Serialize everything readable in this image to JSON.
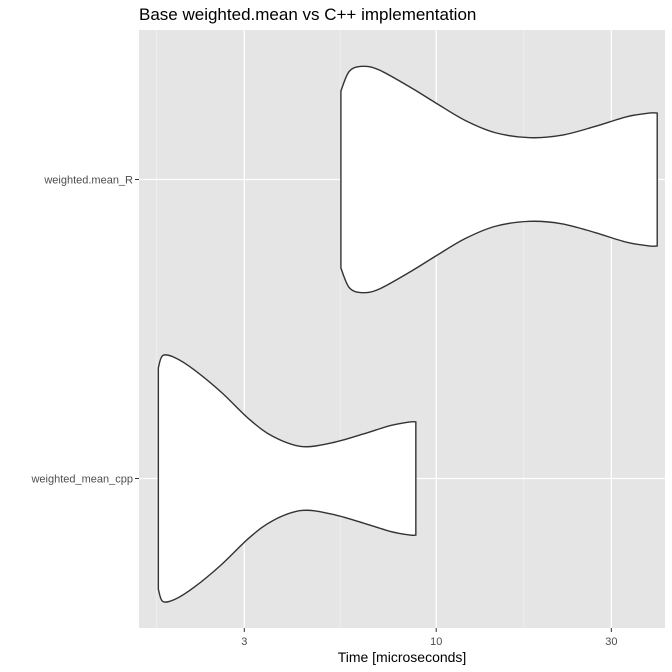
{
  "chart_data": {
    "type": "violin",
    "title": "Base weighted.mean vs C++ implementation",
    "xlabel": "Time [microseconds]",
    "ylabel": "",
    "x_scale": "log10",
    "xlim": [
      1.55,
      42
    ],
    "x_ticks": [
      3,
      10,
      30
    ],
    "x_tick_labels": [
      "3",
      "10",
      "30"
    ],
    "x_minor_ticks": [
      1.732,
      5.477,
      17.32
    ],
    "categories": [
      "weighted.mean_R",
      "weighted_mean_cpp"
    ],
    "grid": true,
    "background": "#e5e5e5",
    "violins": [
      {
        "name": "weighted.mean_R",
        "min": 5.5,
        "max": 40,
        "profile": [
          [
            5.5,
            0.72
          ],
          [
            5.8,
            0.88
          ],
          [
            6.3,
            0.92
          ],
          [
            7.0,
            0.89
          ],
          [
            8.5,
            0.75
          ],
          [
            10.0,
            0.62
          ],
          [
            12.0,
            0.48
          ],
          [
            14.5,
            0.38
          ],
          [
            18.0,
            0.34
          ],
          [
            22.0,
            0.36
          ],
          [
            27.0,
            0.43
          ],
          [
            33.0,
            0.51
          ],
          [
            38.0,
            0.54
          ],
          [
            40.0,
            0.54
          ]
        ]
      },
      {
        "name": "weighted_mean_cpp",
        "min": 1.75,
        "max": 8.8,
        "profile": [
          [
            1.75,
            0.9
          ],
          [
            1.8,
            1.0
          ],
          [
            1.95,
            0.98
          ],
          [
            2.2,
            0.88
          ],
          [
            2.6,
            0.7
          ],
          [
            3.1,
            0.48
          ],
          [
            3.6,
            0.34
          ],
          [
            4.3,
            0.26
          ],
          [
            5.2,
            0.29
          ],
          [
            6.3,
            0.36
          ],
          [
            7.5,
            0.43
          ],
          [
            8.5,
            0.46
          ],
          [
            8.8,
            0.46
          ]
        ]
      }
    ]
  }
}
